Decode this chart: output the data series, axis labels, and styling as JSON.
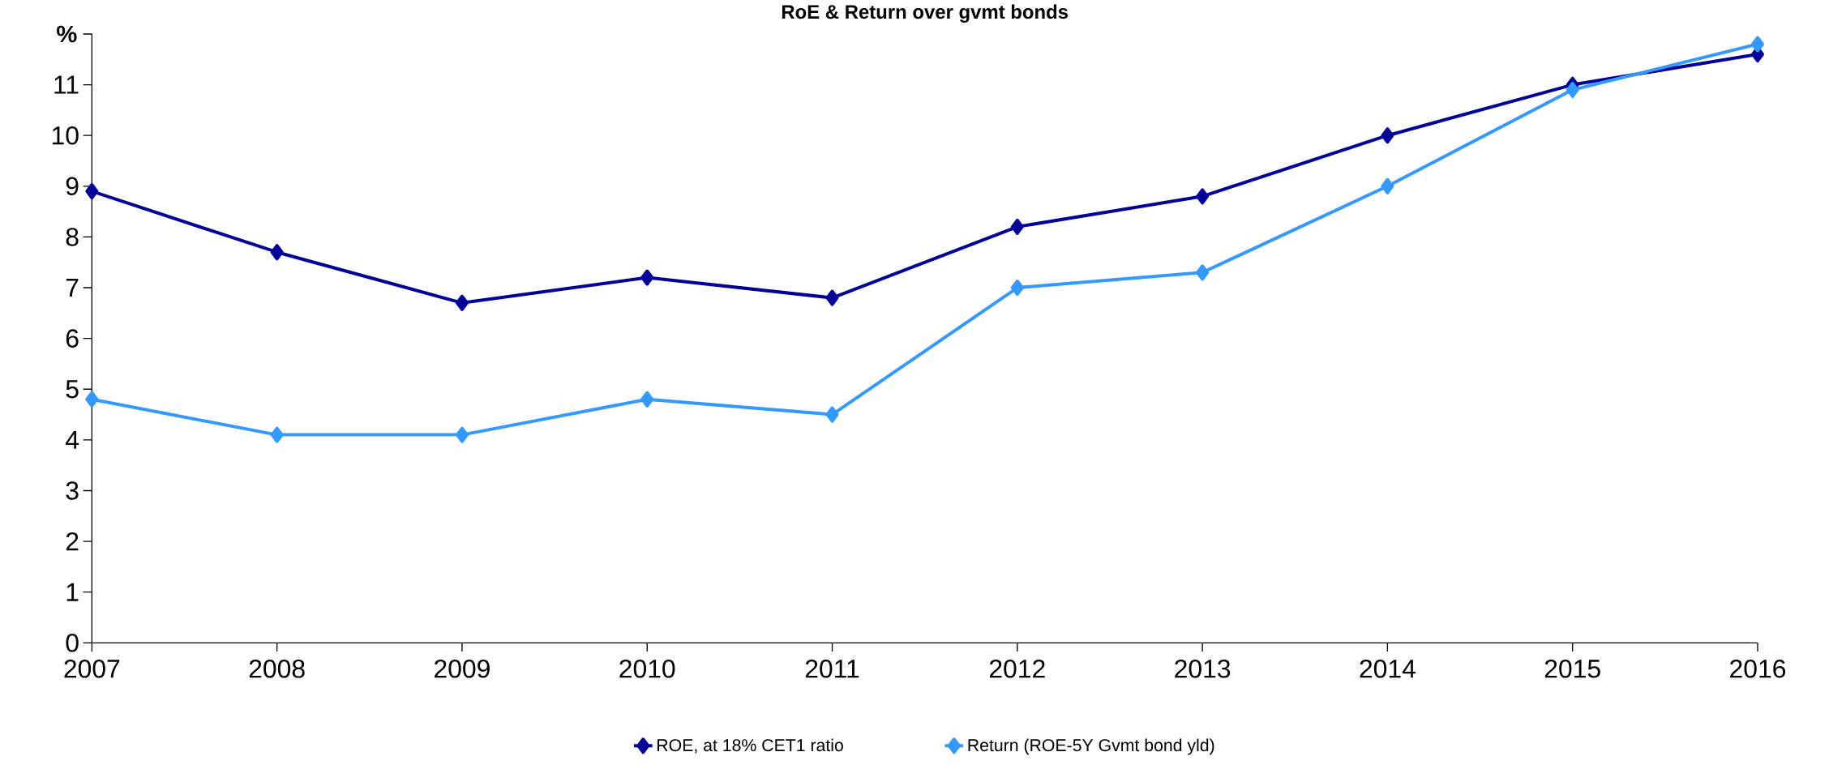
{
  "chart_data": {
    "type": "line",
    "title": "RoE & Return over gvmt bonds",
    "ylabel": "%",
    "categories": [
      "2007",
      "2008",
      "2009",
      "2010",
      "2011",
      "2012",
      "2013",
      "2014",
      "2015",
      "2016"
    ],
    "series": [
      {
        "name": "ROE, at 18% CET1 ratio",
        "color": "#000099",
        "values": [
          8.9,
          7.7,
          6.7,
          7.2,
          6.8,
          8.2,
          8.8,
          10.0,
          11.0,
          11.6
        ]
      },
      {
        "name": "Return (ROE-5Y Gvmt bond yld)",
        "color": "#3399ff",
        "values": [
          4.8,
          4.1,
          4.1,
          4.8,
          4.5,
          7.0,
          7.3,
          9.0,
          10.9,
          11.8
        ]
      }
    ],
    "ylim": [
      0,
      12
    ],
    "yticks": [
      0,
      1,
      2,
      3,
      4,
      5,
      6,
      7,
      8,
      9,
      10,
      11,
      {
        "value": 12,
        "label": null
      }
    ],
    "grid": false,
    "legend": "bottom",
    "marker": "diamond",
    "line_style": "solid"
  }
}
